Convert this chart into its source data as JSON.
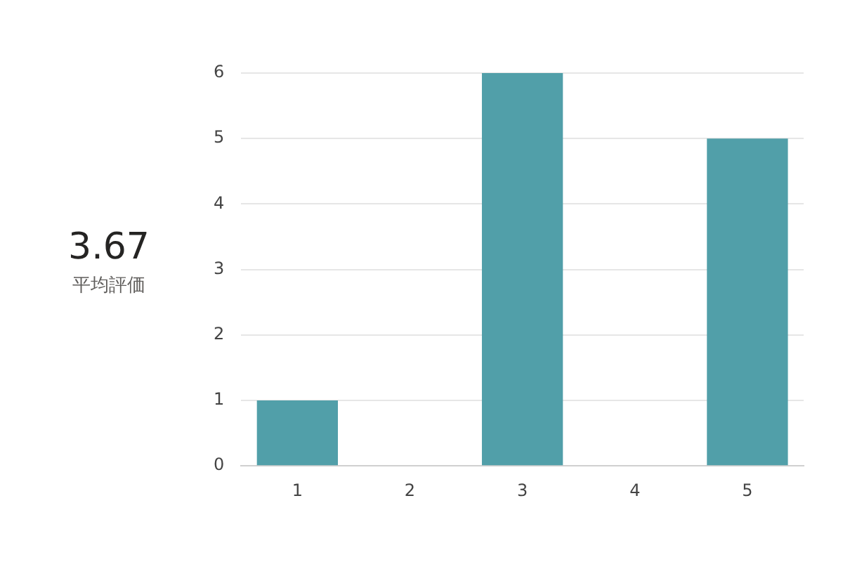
{
  "chart_data": {
    "type": "bar",
    "categories": [
      "1",
      "2",
      "3",
      "4",
      "5"
    ],
    "values": [
      1,
      0,
      6,
      0,
      5
    ],
    "color": "#519fa9",
    "ylim": [
      0,
      6
    ],
    "yticks": [
      0,
      1,
      2,
      3,
      4,
      5,
      6
    ],
    "grid": "y",
    "legend": false,
    "annotations": [
      "3.67",
      "平均評価"
    ]
  }
}
